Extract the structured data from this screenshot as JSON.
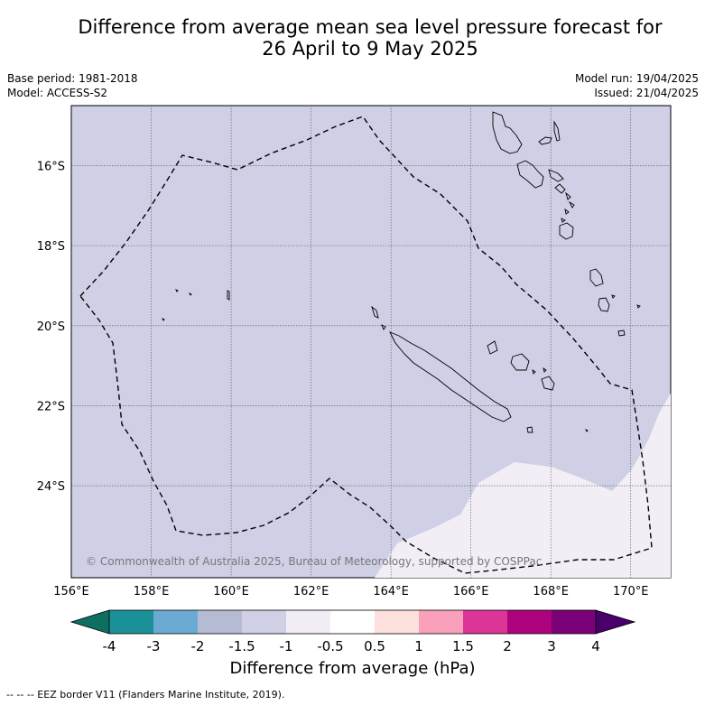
{
  "title_line1": "Difference from average mean sea level pressure forecast for",
  "title_line2": "26 April to 9 May 2025",
  "meta": {
    "base_period": "Base period: 1981-2018",
    "model": "Model: ACCESS-S2",
    "model_run": "Model run: 19/04/2025",
    "issued": "Issued: 21/04/2025"
  },
  "map": {
    "lon_range": [
      156,
      171
    ],
    "lat_range": [
      -26.3,
      -14.5
    ],
    "lon_ticks": [
      156,
      158,
      160,
      162,
      164,
      166,
      168,
      170
    ],
    "lon_tick_labels": [
      "156°E",
      "158°E",
      "160°E",
      "162°E",
      "164°E",
      "166°E",
      "168°E",
      "170°E"
    ],
    "lat_ticks": [
      -16,
      -18,
      -20,
      -22,
      -24
    ],
    "lat_tick_labels": [
      "16°S",
      "18°S",
      "20°S",
      "22°S",
      "24°S"
    ],
    "gridlines": true,
    "background_color": "#cfd0e6",
    "anomaly_color": "#f3eef6",
    "copyright": "© Commonwealth of Australia 2025, Bureau of Meteorology, supported by COSPPac"
  },
  "colorbar": {
    "colors": [
      "#0d6e62",
      "#1a9199",
      "#6aaad3",
      "#b5bbd3",
      "#cfd0e6",
      "#f3eef6",
      "#ffffff",
      "#fde0dd",
      "#f9a0bb",
      "#dd3497",
      "#ae017e",
      "#7a0177",
      "#49006a"
    ],
    "tick_labels": [
      "-4",
      "-3",
      "-2",
      "-1.5",
      "-1",
      "-0.5",
      "0.5",
      "1",
      "1.5",
      "2",
      "3",
      "4"
    ],
    "label": "Difference from average (hPa)"
  },
  "footer": "-- -- -- EEZ border V11 (Flanders Marine Institute, 2019)."
}
